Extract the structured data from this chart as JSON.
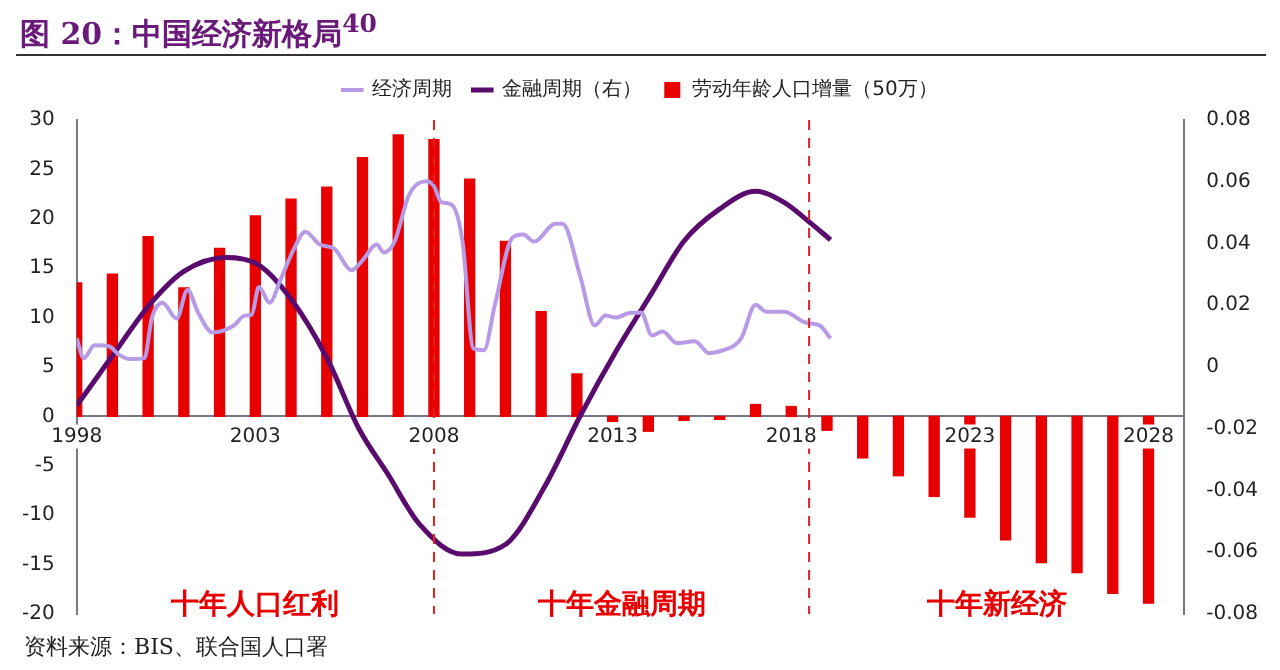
{
  "chart_data": {
    "type": "bar",
    "title": "图 20：中国经济新格局$^{40}$",
    "ylabel": null,
    "xlim": [
      1998,
      2029
    ],
    "xticks": [
      1998,
      2003,
      2008,
      2013,
      2018,
      2023,
      2028
    ],
    "ylim": [
      -20,
      30
    ],
    "yticks": [
      -20,
      -15,
      -10,
      -5,
      0,
      5,
      10,
      15,
      20,
      25,
      30
    ],
    "y2lim": [
      -0.08,
      0.08
    ],
    "y2ticks": [
      -0.08,
      -0.06,
      -0.04,
      -0.02,
      0,
      0.02,
      0.04,
      0.06,
      0.08
    ],
    "grid": false,
    "legend": "top",
    "marker": "none",
    "series": [
      {
        "name": "劳动年龄人口增量（50万）",
        "color": "#e80000",
        "x": [
          1998,
          1999,
          2000,
          2001,
          2002,
          2003,
          2004,
          2005,
          2006,
          2007,
          2008,
          2009,
          2010,
          2011,
          2012,
          2013,
          2014,
          2015,
          2016,
          2017,
          2018,
          2019,
          2020,
          2021,
          2022,
          2023,
          2024,
          2025,
          2026,
          2027,
          2028
        ],
        "values": [
          13.5,
          14.4,
          18.2,
          13.0,
          17.0,
          20.3,
          22.0,
          23.2,
          26.2,
          28.5,
          28.0,
          24.0,
          17.7,
          10.6,
          4.3,
          -0.5,
          -1.5,
          -0.4,
          -0.3,
          1.2,
          1.0,
          -1.4,
          -4.2,
          -6.0,
          -8.1,
          -10.2,
          -12.5,
          -14.8,
          -15.8,
          -17.9,
          -18.9
        ]
      },
      {
        "name": "经济周期",
        "type": "line",
        "color": "#b79be6",
        "x": [
          1998.0,
          1998.2,
          1998.5,
          1998.9,
          1999.2,
          1999.5,
          1999.9,
          2000.1,
          2000.4,
          2000.8,
          2001.1,
          2001.4,
          2001.8,
          2002.4,
          2002.7,
          2002.9,
          2003.1,
          2003.4,
          2003.7,
          2004.1,
          2004.4,
          2004.8,
          2005.2,
          2005.7,
          2006.0,
          2006.4,
          2006.6,
          2006.9,
          2007.3,
          2007.8,
          2008.0,
          2008.2,
          2008.5,
          2008.8,
          2009.1,
          2009.4,
          2009.7,
          2010.2,
          2010.5,
          2010.8,
          2011.4,
          2011.6,
          2012.1,
          2012.5,
          2012.8,
          2013.1,
          2013.5,
          2013.8,
          2014.1,
          2014.4,
          2014.8,
          2015.3,
          2015.7,
          2016.1,
          2016.6,
          2017.0,
          2017.3,
          2017.8,
          2018.4,
          2018.8,
          2019.1
        ],
        "values": [
          7.9,
          5.9,
          7.2,
          7.1,
          6.2,
          5.8,
          5.9,
          9.9,
          11.5,
          9.9,
          12.8,
          10.5,
          8.5,
          9.2,
          10.2,
          10.3,
          13.1,
          11.5,
          13.8,
          17.1,
          18.7,
          17.4,
          17.0,
          14.8,
          15.8,
          17.4,
          16.6,
          17.7,
          22.4,
          23.8,
          23.3,
          21.7,
          21.4,
          17.7,
          6.9,
          6.7,
          11.2,
          18.1,
          18.4,
          17.7,
          19.5,
          19.5,
          14.1,
          9.2,
          10.2,
          10.0,
          10.5,
          10.5,
          8.2,
          8.6,
          7.4,
          7.6,
          6.4,
          6.7,
          7.9,
          11.3,
          10.6,
          10.6,
          9.5,
          9.2,
          7.9
        ]
      },
      {
        "name": "金融周期（右）",
        "type": "line",
        "axis": "y2",
        "color": "#5a0b6e",
        "x": [
          1998.0,
          1998.9,
          2000.1,
          2001.0,
          2002.2,
          2003.1,
          2004.0,
          2005.0,
          2005.9,
          2006.7,
          2007.6,
          2008.8,
          2010.0,
          2011.1,
          2012.1,
          2013.1,
          2014.1,
          2015.0,
          2016.0,
          2017.0,
          2017.8,
          2018.5,
          2019.1
        ],
        "values": [
          -0.0125,
          0.002,
          0.021,
          0.031,
          0.0355,
          0.033,
          0.022,
          0.003,
          -0.02,
          -0.0345,
          -0.051,
          -0.0606,
          -0.0575,
          -0.0387,
          -0.0157,
          0.0052,
          0.024,
          0.0408,
          0.0512,
          0.0569,
          0.0533,
          0.047,
          0.0412
        ]
      }
    ],
    "ref_lines": [
      {
        "axis": "x",
        "value": 2008,
        "label": null,
        "color": "#e02020",
        "line_style": "dashed"
      },
      {
        "axis": "x",
        "value": 2018.5,
        "label": null,
        "color": "#e02020",
        "line_style": "dashed"
      }
    ],
    "annotations": [
      "十年人口红利",
      "十年金融周期",
      "十年新经济",
      "资料来源：BIS、联合国人口署"
    ]
  }
}
